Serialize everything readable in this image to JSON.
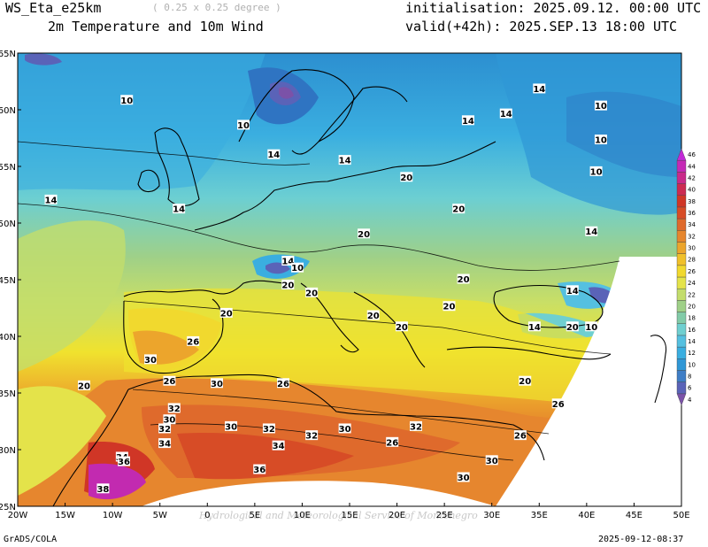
{
  "header": {
    "model": "WS_Eta_e25km",
    "resolution": "( 0.25 x 0.25 degree )",
    "field": "2m Temperature and 10m Wind",
    "init": "initialisation: 2025.09.12. 00:00 UTC",
    "valid": "valid(+42h): 2025.SEP.13 18:00 UTC"
  },
  "footer": {
    "left": "GrADS/COLA",
    "right": "2025-09-12-08:37",
    "watermark": "Hydrological and Meteorological Service of Montenegro"
  },
  "axes": {
    "lon_labels": [
      "20W",
      "15W",
      "10W",
      "5W",
      "0",
      "5E",
      "10E",
      "15E",
      "20E",
      "25E",
      "30E",
      "35E",
      "40E",
      "45E",
      "50E"
    ],
    "lat_labels": [
      "65N",
      "60N",
      "55N",
      "50N",
      "45N",
      "40N",
      "35N",
      "30N",
      "25N"
    ]
  },
  "colorbar": {
    "levels": [
      "4",
      "6",
      "8",
      "10",
      "12",
      "14",
      "16",
      "18",
      "20",
      "22",
      "24",
      "26",
      "28",
      "30",
      "32",
      "34",
      "36",
      "38",
      "40",
      "42",
      "44",
      "46"
    ],
    "colors": [
      "#7b52a8",
      "#5a63b8",
      "#3f7ec6",
      "#2f97d6",
      "#3aaee0",
      "#55c0e0",
      "#6fcfd0",
      "#82cba8",
      "#9fd088",
      "#c3dd6c",
      "#e4e34a",
      "#f1d92e",
      "#f0c02a",
      "#eca52c",
      "#e6862e",
      "#df6a2c",
      "#d74c26",
      "#d03626",
      "#cc2a52",
      "#c92a8a",
      "#c52ab6",
      "#c22ad8"
    ]
  },
  "contour_labels": [
    {
      "text": "10",
      "lon": -8.5,
      "lat": 60.8
    },
    {
      "text": "10",
      "lon": 3.8,
      "lat": 58.6
    },
    {
      "text": "14",
      "lon": 7.0,
      "lat": 56.0
    },
    {
      "text": "14",
      "lon": -16.5,
      "lat": 52.0
    },
    {
      "text": "14",
      "lon": -3.0,
      "lat": 51.2
    },
    {
      "text": "14",
      "lon": 14.5,
      "lat": 55.5
    },
    {
      "text": "14",
      "lon": 27.5,
      "lat": 59.0
    },
    {
      "text": "14",
      "lon": 31.5,
      "lat": 59.6
    },
    {
      "text": "14",
      "lon": 35.0,
      "lat": 61.8
    },
    {
      "text": "10",
      "lon": 41.5,
      "lat": 60.3
    },
    {
      "text": "10",
      "lon": 41.5,
      "lat": 57.3
    },
    {
      "text": "10",
      "lon": 41.0,
      "lat": 54.5
    },
    {
      "text": "20",
      "lon": 21.0,
      "lat": 54.0
    },
    {
      "text": "20",
      "lon": 26.5,
      "lat": 51.2
    },
    {
      "text": "14",
      "lon": 40.5,
      "lat": 49.2
    },
    {
      "text": "20",
      "lon": 16.5,
      "lat": 49.0
    },
    {
      "text": "14",
      "lon": 8.5,
      "lat": 46.6
    },
    {
      "text": "10",
      "lon": 9.5,
      "lat": 46.0
    },
    {
      "text": "20",
      "lon": 8.5,
      "lat": 44.5
    },
    {
      "text": "20",
      "lon": 11.0,
      "lat": 43.8
    },
    {
      "text": "20",
      "lon": 2.0,
      "lat": 42.0
    },
    {
      "text": "20",
      "lon": 27.0,
      "lat": 45.0
    },
    {
      "text": "20",
      "lon": 25.5,
      "lat": 42.6
    },
    {
      "text": "20",
      "lon": 17.5,
      "lat": 41.8
    },
    {
      "text": "20",
      "lon": 20.5,
      "lat": 40.8
    },
    {
      "text": "14",
      "lon": 38.5,
      "lat": 44.0
    },
    {
      "text": "14",
      "lon": 34.5,
      "lat": 40.8
    },
    {
      "text": "20",
      "lon": 38.5,
      "lat": 40.8
    },
    {
      "text": "10",
      "lon": 40.5,
      "lat": 40.8
    },
    {
      "text": "26",
      "lon": -1.5,
      "lat": 39.5
    },
    {
      "text": "30",
      "lon": -6.0,
      "lat": 37.9
    },
    {
      "text": "26",
      "lon": -4.0,
      "lat": 36.0
    },
    {
      "text": "30",
      "lon": 1.0,
      "lat": 35.8
    },
    {
      "text": "26",
      "lon": 8.0,
      "lat": 35.8
    },
    {
      "text": "20",
      "lon": -13.0,
      "lat": 35.6
    },
    {
      "text": "20",
      "lon": 33.5,
      "lat": 36.0
    },
    {
      "text": "26",
      "lon": 37.0,
      "lat": 34.0
    },
    {
      "text": "32",
      "lon": -3.5,
      "lat": 33.6
    },
    {
      "text": "30",
      "lon": -4.0,
      "lat": 32.6
    },
    {
      "text": "32",
      "lon": -4.5,
      "lat": 31.8
    },
    {
      "text": "30",
      "lon": 2.5,
      "lat": 32.0
    },
    {
      "text": "32",
      "lon": 6.5,
      "lat": 31.8
    },
    {
      "text": "32",
      "lon": 11.0,
      "lat": 31.2
    },
    {
      "text": "30",
      "lon": 14.5,
      "lat": 31.8
    },
    {
      "text": "32",
      "lon": 22.0,
      "lat": 32.0
    },
    {
      "text": "26",
      "lon": 19.5,
      "lat": 30.6
    },
    {
      "text": "26",
      "lon": 33.0,
      "lat": 31.2
    },
    {
      "text": "34",
      "lon": -4.5,
      "lat": 30.5
    },
    {
      "text": "34",
      "lon": 7.5,
      "lat": 30.3
    },
    {
      "text": "34",
      "lon": -9.0,
      "lat": 29.3
    },
    {
      "text": "36",
      "lon": -8.8,
      "lat": 28.9
    },
    {
      "text": "30",
      "lon": 30.0,
      "lat": 29.0
    },
    {
      "text": "36",
      "lon": 5.5,
      "lat": 28.2
    },
    {
      "text": "30",
      "lon": 27.0,
      "lat": 27.5
    },
    {
      "text": "38",
      "lon": -11.0,
      "lat": 26.5
    }
  ]
}
